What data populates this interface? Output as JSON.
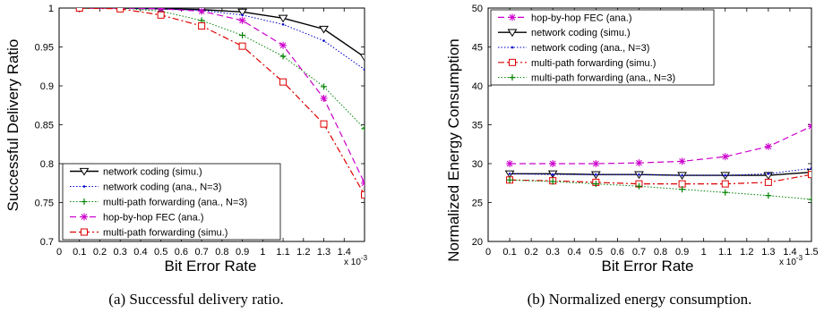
{
  "chart_data": [
    {
      "type": "line",
      "caption": "(a) Successful delivery ratio.",
      "xlabel": "Bit Error Rate",
      "ylabel": "Successful Delivery Ratio",
      "x_multiplier": "x 10",
      "x_multiplier_exp": "-3",
      "xlim": [
        0,
        1.5
      ],
      "ylim": [
        0.7,
        1.0
      ],
      "xticks": [
        "0",
        "0.1",
        "0.2",
        "0.3",
        "0.4",
        "0.5",
        "0.6",
        "0.7",
        "0.8",
        "0.9",
        "1",
        "1.1",
        "1.2",
        "1.3",
        "1.4"
      ],
      "yticks": [
        "0.7",
        "0.75",
        "0.8",
        "0.85",
        "0.9",
        "0.95",
        "1"
      ],
      "grid": false,
      "legend_position": "bottom-left",
      "x": [
        0.1,
        0.3,
        0.5,
        0.7,
        0.9,
        1.1,
        1.3,
        1.5
      ],
      "series": [
        {
          "name": "network coding (simu.)",
          "color": "#000000",
          "values": [
            1.0,
            1.0,
            0.999,
            0.998,
            0.995,
            0.987,
            0.973,
            0.937
          ]
        },
        {
          "name": "network coding (ana., N=3)",
          "color": "#0000cc",
          "values": [
            1.0,
            1.0,
            0.999,
            0.997,
            0.991,
            0.979,
            0.958,
            0.921
          ]
        },
        {
          "name": "multi-path forwarding (ana., N=3)",
          "color": "#008000",
          "values": [
            1.0,
            1.0,
            0.996,
            0.984,
            0.965,
            0.938,
            0.899,
            0.845
          ]
        },
        {
          "name": "hop-by-hop FEC (ana.)",
          "color": "#cc00cc",
          "values": [
            1.0,
            1.0,
            0.999,
            0.996,
            0.984,
            0.952,
            0.884,
            0.775
          ]
        },
        {
          "name": "multi-path forwarding (simu.)",
          "color": "#dd0000",
          "values": [
            1.0,
            0.999,
            0.991,
            0.977,
            0.951,
            0.905,
            0.851,
            0.76
          ]
        }
      ]
    },
    {
      "type": "line",
      "caption": "(b) Normalized energy consumption.",
      "xlabel": "Bit Error Rate",
      "ylabel": "Normalized Energy Consumption",
      "x_multiplier": "x 10",
      "x_multiplier_exp": "-3",
      "xlim": [
        0,
        1.5
      ],
      "ylim": [
        20,
        50
      ],
      "xticks": [
        "0",
        "0.1",
        "0.2",
        "0.3",
        "0.4",
        "0.5",
        "0.6",
        "0.7",
        "0.8",
        "0.9",
        "1",
        "1.1",
        "1.2",
        "1.3",
        "1.4",
        "1.5"
      ],
      "yticks": [
        "20",
        "25",
        "30",
        "35",
        "40",
        "45",
        "50"
      ],
      "grid": false,
      "legend_position": "top-left",
      "x": [
        0.1,
        0.3,
        0.5,
        0.7,
        0.9,
        1.1,
        1.3,
        1.5
      ],
      "series": [
        {
          "name": "hop-by-hop FEC (ana.)",
          "color": "#cc00cc",
          "values": [
            30.0,
            30.0,
            30.0,
            30.1,
            30.3,
            30.9,
            32.2,
            34.8
          ]
        },
        {
          "name": "network coding (simu.)",
          "color": "#000000",
          "values": [
            28.7,
            28.7,
            28.6,
            28.6,
            28.5,
            28.5,
            28.5,
            28.9
          ]
        },
        {
          "name": "network coding (ana., N=3)",
          "color": "#0000cc",
          "values": [
            28.7,
            28.6,
            28.6,
            28.6,
            28.5,
            28.5,
            28.7,
            29.4
          ]
        },
        {
          "name": "multi-path forwarding (simu.)",
          "color": "#dd0000",
          "values": [
            27.9,
            27.8,
            27.6,
            27.4,
            27.4,
            27.4,
            27.6,
            28.6
          ]
        },
        {
          "name": "multi-path forwarding (ana., N=3)",
          "color": "#008000",
          "values": [
            27.9,
            27.7,
            27.4,
            27.1,
            26.7,
            26.3,
            25.9,
            25.4
          ]
        }
      ]
    }
  ]
}
